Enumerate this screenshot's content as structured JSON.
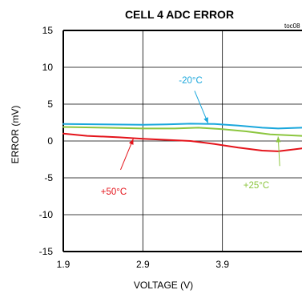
{
  "chart_data": {
    "type": "line",
    "title": "CELL 4 ADC ERROR",
    "figure_id": "toc08",
    "xlabel": "VOLTAGE (V)",
    "ylabel": "ERROR (mV)",
    "xlim": [
      1.9,
      4.9
    ],
    "ylim": [
      -15,
      15
    ],
    "xticks": [
      1.9,
      2.9,
      3.9
    ],
    "xtick_labels": [
      "1.9",
      "2.9",
      "3.9"
    ],
    "yticks": [
      -15,
      -10,
      -5,
      0,
      5,
      10,
      15
    ],
    "ytick_labels": [
      "-15",
      "-10",
      "-5",
      "0",
      "5",
      "10",
      "15"
    ],
    "grid": true,
    "series": [
      {
        "name": "-20°C",
        "color": "#1aa7dc",
        "x": [
          1.9,
          2.4,
          2.9,
          3.2,
          3.5,
          3.8,
          4.1,
          4.4,
          4.6,
          4.9
        ],
        "y": [
          2.3,
          2.25,
          2.2,
          2.25,
          2.35,
          2.3,
          2.1,
          1.8,
          1.7,
          1.8
        ]
      },
      {
        "name": "+25°C",
        "color": "#8cc63f",
        "x": [
          1.9,
          2.4,
          2.9,
          3.3,
          3.6,
          3.9,
          4.2,
          4.5,
          4.9
        ],
        "y": [
          1.9,
          1.8,
          1.7,
          1.7,
          1.8,
          1.6,
          1.3,
          0.9,
          0.7
        ]
      },
      {
        "name": "+50°C",
        "color": "#e4141b",
        "x": [
          1.9,
          2.2,
          2.6,
          2.9,
          3.2,
          3.5,
          3.8,
          4.1,
          4.4,
          4.6,
          4.9
        ],
        "y": [
          1.0,
          0.7,
          0.5,
          0.3,
          0.15,
          0.0,
          -0.4,
          -0.9,
          -1.3,
          -1.4,
          -1.0
        ]
      }
    ],
    "annotations": [
      {
        "text": "-20°C",
        "color": "#1aa7dc",
        "series": "-20°C",
        "arrow_from": [
          3.55,
          6.8
        ],
        "arrow_to": [
          3.72,
          2.4
        ]
      },
      {
        "text": "+25°C",
        "color": "#8cc63f",
        "series": "+25°C",
        "arrow_from": [
          4.62,
          -3.4
        ],
        "arrow_to": [
          4.6,
          0.6
        ]
      },
      {
        "text": "+50°C",
        "color": "#e4141b",
        "series": "+50°C",
        "arrow_from": [
          2.62,
          -3.9
        ],
        "arrow_to": [
          2.78,
          0.3
        ]
      }
    ]
  }
}
